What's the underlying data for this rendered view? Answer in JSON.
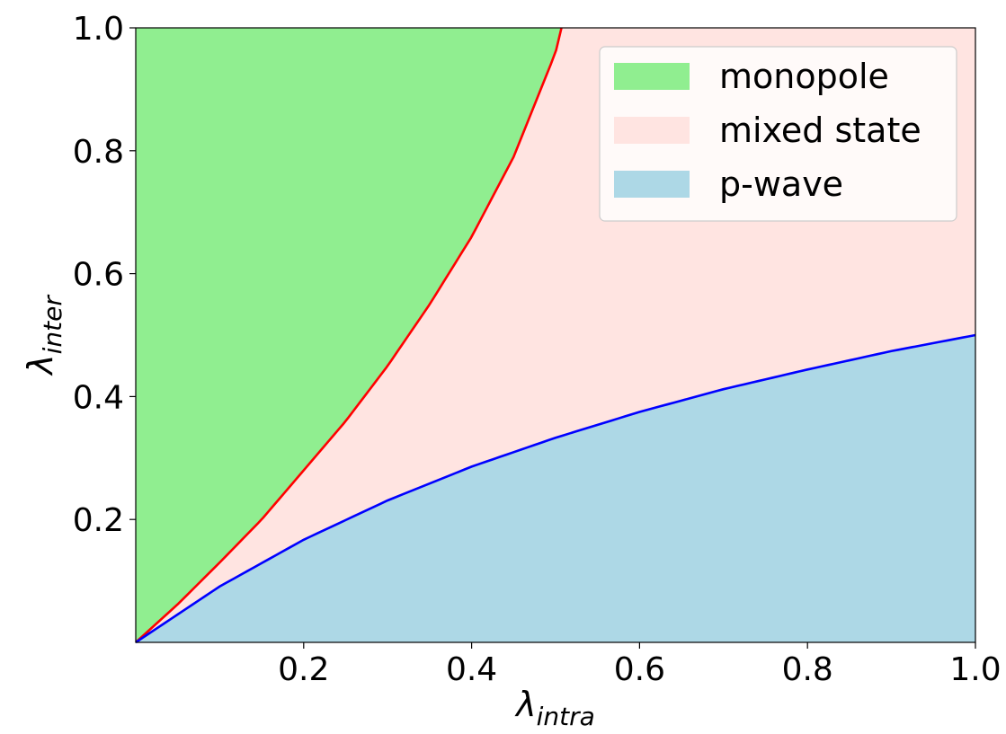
{
  "chart_data": {
    "type": "area",
    "xlabel": {
      "symbol": "λ",
      "subscript": "intra"
    },
    "ylabel": {
      "symbol": "λ",
      "subscript": "inter"
    },
    "xlim": [
      0,
      1
    ],
    "ylim": [
      0,
      1
    ],
    "xticks": [
      0.2,
      0.4,
      0.6,
      0.8,
      1.0
    ],
    "xtick_labels": [
      "0.2",
      "0.4",
      "0.6",
      "0.8",
      "1.0"
    ],
    "yticks": [
      0.2,
      0.4,
      0.6,
      0.8,
      1.0
    ],
    "ytick_labels": [
      "0.2",
      "0.4",
      "0.6",
      "0.8",
      "1.0"
    ],
    "grid": false,
    "legend_placement": "top-right",
    "boundaries": [
      {
        "id": "upper-boundary",
        "color": "#ff0000",
        "x": [
          0,
          0.05,
          0.1,
          0.15,
          0.2,
          0.25,
          0.3,
          0.35,
          0.4,
          0.45,
          0.5,
          0.507
        ],
        "y": [
          0,
          0.062,
          0.13,
          0.2,
          0.28,
          0.36,
          0.45,
          0.55,
          0.66,
          0.79,
          0.96,
          1.0
        ]
      },
      {
        "id": "lower-boundary",
        "color": "#0000ff",
        "x": [
          0,
          0.1,
          0.2,
          0.3,
          0.4,
          0.5,
          0.6,
          0.7,
          0.8,
          0.9,
          1.0
        ],
        "y": [
          0,
          0.091,
          0.167,
          0.231,
          0.286,
          0.333,
          0.375,
          0.412,
          0.444,
          0.474,
          0.5
        ]
      }
    ],
    "series": [
      {
        "name": "monopole",
        "color": "#90ee90"
      },
      {
        "name": "mixed state",
        "color": "#ffe4e1"
      },
      {
        "name": "p-wave",
        "color": "#add8e6"
      }
    ]
  }
}
